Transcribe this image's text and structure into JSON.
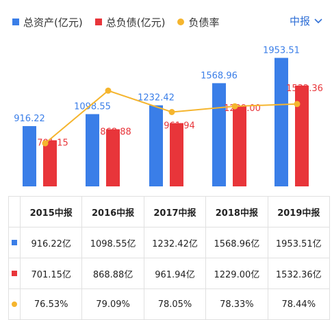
{
  "legend": {
    "assets": "总资产(亿元)",
    "liabilities": "总负债(亿元)",
    "ratio": "负债率"
  },
  "period_selector": "中报",
  "colors": {
    "assets": "#3a7ee8",
    "liabilities": "#e8353a",
    "ratio": "#f5b52e"
  },
  "chart_data": {
    "type": "bar",
    "categories": [
      "2015中报",
      "2016中报",
      "2017中报",
      "2018中报",
      "2019中报"
    ],
    "series": [
      {
        "name": "总资产(亿元)",
        "values": [
          916.22,
          1098.55,
          1232.42,
          1568.96,
          1953.51
        ]
      },
      {
        "name": "总负债(亿元)",
        "values": [
          701.15,
          868.88,
          961.94,
          1229.0,
          1532.36
        ]
      },
      {
        "name": "负债率",
        "type": "line",
        "values": [
          76.53,
          79.09,
          78.05,
          78.33,
          78.44
        ]
      }
    ],
    "data_labels": {
      "assets": [
        "916.22",
        "1098.55",
        "1232.42",
        "1568.96",
        "1953.51"
      ],
      "liabilities": [
        "701.15",
        "868.88",
        "961.94",
        "1229.00",
        "1532.36"
      ]
    },
    "ylim": [
      0,
      2000
    ],
    "ratio_ylim": [
      76.0,
      80.0
    ],
    "grid": false
  },
  "table": {
    "headers": [
      "2015中报",
      "2016中报",
      "2017中报",
      "2018中报",
      "2019中报"
    ],
    "rows": [
      {
        "marker": "assets",
        "cells": [
          "916.22亿",
          "1098.55亿",
          "1232.42亿",
          "1568.96亿",
          "1953.51亿"
        ]
      },
      {
        "marker": "liabilities",
        "cells": [
          "701.15亿",
          "868.88亿",
          "961.94亿",
          "1229.00亿",
          "1532.36亿"
        ]
      },
      {
        "marker": "ratio",
        "cells": [
          "76.53%",
          "79.09%",
          "78.05%",
          "78.33%",
          "78.44%"
        ]
      }
    ]
  }
}
